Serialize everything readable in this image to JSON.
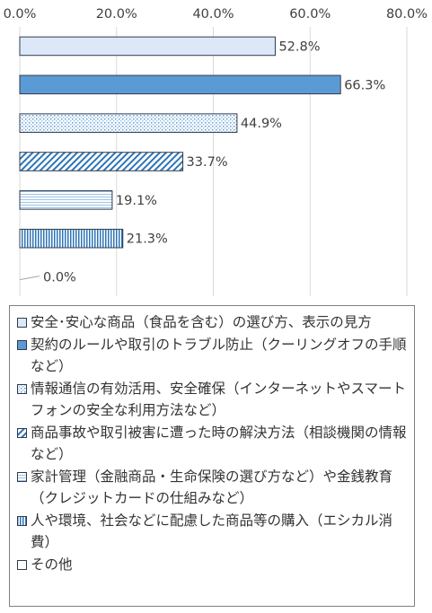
{
  "chart_data": {
    "type": "bar",
    "orientation": "horizontal",
    "xlim": [
      0,
      80
    ],
    "x_ticks": [
      "0.0%",
      "20.0%",
      "40.0%",
      "60.0%",
      "80.0%"
    ],
    "grid": true,
    "legend_position": "bottom",
    "categories": [
      "安全･安心な商品（食品を含む）の選び方、表示の見方",
      "契約のルールや取引のトラブル防止（クーリングオフの手順など）",
      "情報通信の有効活用、安全確保（インターネットやスマートフォンの安全な利用方法など）",
      "商品事故や取引被害に遭った時の解決方法（相談機関の情報など）",
      "家計管理（金融商品・生命保険の選び方など）や金銭教育（クレジットカードの仕組みなど）",
      "人や環境、社会などに配慮した商品等の購入（エシカル消費）",
      "その他"
    ],
    "values": [
      52.8,
      66.3,
      44.9,
      33.7,
      19.1,
      21.3,
      0.0
    ],
    "value_labels": [
      "52.8%",
      "66.3%",
      "44.9%",
      "33.7%",
      "19.1%",
      "21.3%",
      "0.0%"
    ],
    "fills": [
      "light",
      "solid",
      "dots",
      "diagonal",
      "horizontal",
      "vertical",
      "none"
    ],
    "colors": {
      "bar_edge": "#2f3b4c",
      "light_fill": "#dce8f7",
      "solid_fill": "#5b9bd5",
      "grid": "#d9d9d9",
      "text": "#404040"
    }
  }
}
